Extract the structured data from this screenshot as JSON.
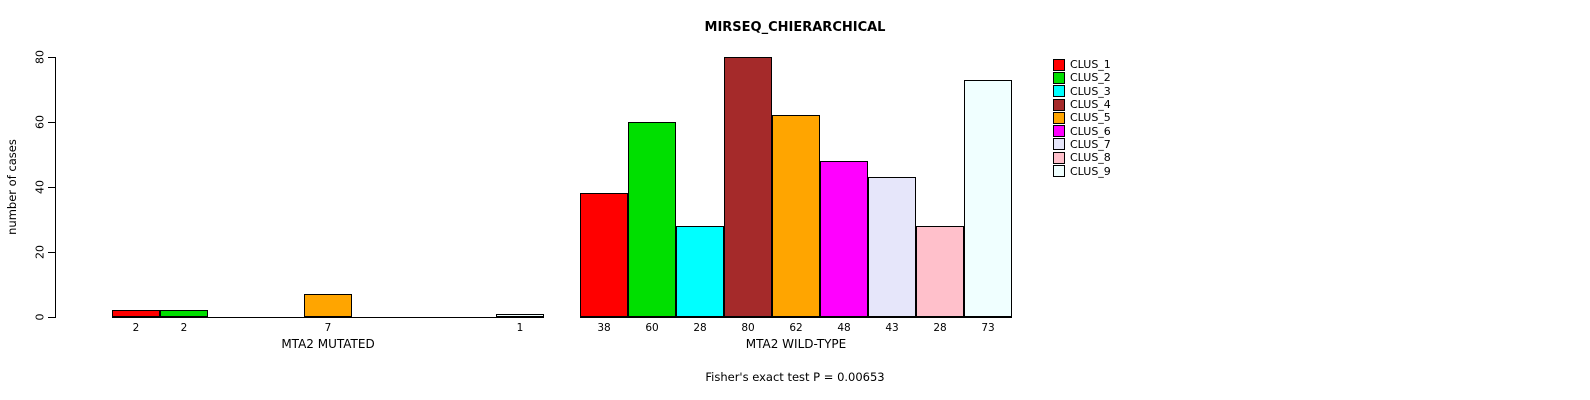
{
  "title": "MIRSEQ_CHIERARCHICAL",
  "footer": "Fisher's exact test P = 0.00653",
  "chart_data": {
    "type": "bar",
    "title": "MIRSEQ_CHIERARCHICAL",
    "xlabel": "",
    "ylabel": "number of cases",
    "ylim": [
      0,
      80
    ],
    "yticks": [
      0,
      20,
      40,
      60,
      80
    ],
    "grid": false,
    "legend_position": "right",
    "annotation": "Fisher's exact test P = 0.00653",
    "series_names": [
      "CLUS_1",
      "CLUS_2",
      "CLUS_3",
      "CLUS_4",
      "CLUS_5",
      "CLUS_6",
      "CLUS_7",
      "CLUS_8",
      "CLUS_9"
    ],
    "colors": [
      "#FF0000",
      "#00DF00",
      "#00FFFF",
      "#A52A2A",
      "#FFA500",
      "#FF00FF",
      "#E6E6FA",
      "#FFC0CB",
      "#F0FFFF"
    ],
    "groups": [
      {
        "label": "MTA2 MUTATED",
        "values": [
          2,
          2,
          0,
          0,
          7,
          0,
          0,
          0,
          1
        ]
      },
      {
        "label": "MTA2 WILD-TYPE",
        "values": [
          38,
          60,
          28,
          80,
          62,
          48,
          43,
          28,
          73
        ]
      }
    ]
  }
}
